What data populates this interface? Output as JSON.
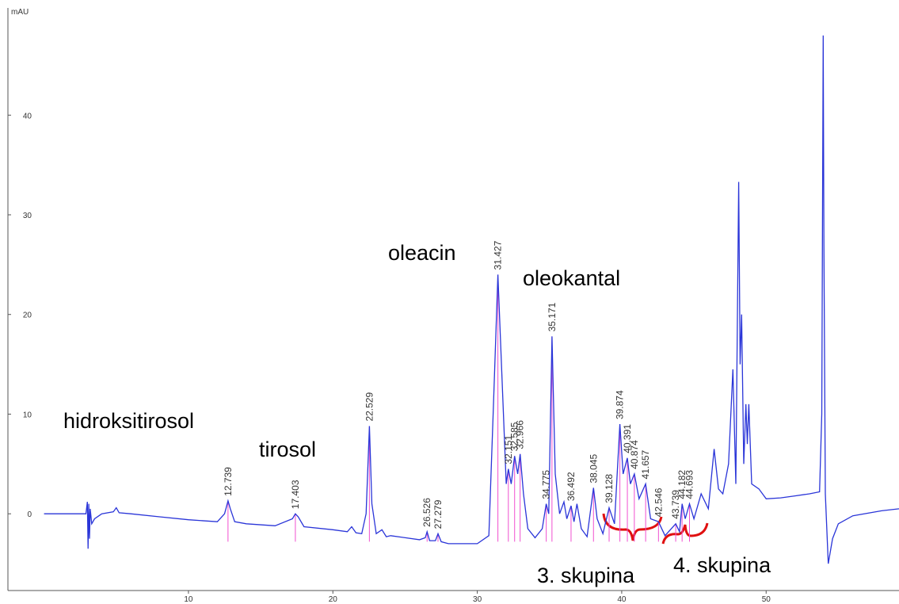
{
  "chart_data": {
    "type": "line",
    "y_label": "mAU",
    "x": [
      0,
      2.9,
      3.0,
      3.05,
      3.1,
      3.15,
      3.2,
      3.3,
      3.5,
      4,
      4.8,
      5,
      5.2,
      6,
      8,
      10,
      12,
      12.5,
      12.739,
      12.9,
      13.2,
      14,
      16,
      17.2,
      17.403,
      17.6,
      18,
      20,
      21,
      21.3,
      21.6,
      22,
      22.3,
      22.529,
      22.7,
      23,
      23.4,
      23.7,
      24,
      26,
      26.4,
      26.526,
      26.7,
      27.1,
      27.279,
      27.5,
      28,
      30,
      30.8,
      31.1,
      31.427,
      31.7,
      32,
      32.151,
      32.35,
      32.585,
      32.8,
      32.966,
      33.2,
      33.5,
      34,
      34.5,
      34.775,
      34.95,
      35.171,
      35.4,
      35.7,
      36.0,
      36.2,
      36.492,
      36.7,
      36.9,
      37.2,
      37.6,
      38.045,
      38.3,
      38.7,
      39.128,
      39.5,
      39.874,
      40.1,
      40.391,
      40.6,
      40.874,
      41.2,
      41.657,
      42,
      42.546,
      43,
      43.739,
      44,
      44.182,
      44.4,
      44.693,
      45,
      45.5,
      46,
      46.4,
      46.7,
      47,
      47.4,
      47.7,
      47.9,
      48.1,
      48.2,
      48.3,
      48.45,
      48.6,
      48.7,
      48.8,
      49,
      49.5,
      50,
      51,
      52,
      53,
      53.7,
      53.85,
      53.95,
      54.0,
      54.1,
      54.3,
      54.6,
      55,
      56,
      58,
      59.2
    ],
    "series": [
      {
        "color": "#2a35d8",
        "values": [
          0,
          0,
          1.2,
          -3.5,
          1,
          -2.5,
          0.5,
          -1,
          -0.5,
          0,
          0.2,
          0.6,
          0.1,
          0,
          -0.3,
          -0.6,
          -0.8,
          0,
          1.3,
          0.5,
          -0.8,
          -1,
          -1.2,
          -0.5,
          0,
          -0.3,
          -1.3,
          -1.6,
          -1.8,
          -1.3,
          -1.9,
          -2,
          0,
          8.8,
          1,
          -2,
          -1.6,
          -2.3,
          -2.2,
          -2.6,
          -2.4,
          -1.8,
          -2.7,
          -2.7,
          -2.0,
          -2.8,
          -3,
          -3,
          -2.2,
          10,
          24,
          14,
          3,
          4.5,
          3,
          5.8,
          4,
          6,
          2,
          -1.5,
          -2.4,
          -1.5,
          1,
          0,
          17.8,
          4,
          0,
          1.2,
          -0.5,
          0.8,
          -0.8,
          1,
          -1.5,
          -2.3,
          2.6,
          -0.5,
          -2,
          0.6,
          -1,
          9,
          4,
          5.6,
          3,
          4,
          1.5,
          3,
          -0.5,
          -0.8,
          -2.2,
          -1,
          -1.8,
          1,
          -0.5,
          1,
          -0.5,
          2,
          0.5,
          6.5,
          2.5,
          2,
          5,
          14.5,
          3,
          33.3,
          15,
          20,
          5,
          11,
          7,
          11,
          3,
          2.5,
          1.5,
          1.6,
          1.8,
          2,
          2.2,
          10,
          48,
          27,
          2,
          -5,
          -2.5,
          -1,
          -0.2,
          0.3,
          0.5
        ]
      }
    ],
    "peak_labels": [
      12.739,
      17.403,
      22.529,
      26.526,
      27.279,
      31.427,
      32.151,
      32.585,
      32.966,
      34.775,
      35.171,
      36.492,
      38.045,
      39.128,
      39.874,
      40.391,
      40.874,
      41.657,
      42.546,
      43.739,
      44.182,
      44.693
    ],
    "annotations": [
      "hidroksitirosol",
      "tirosol",
      "oleacin",
      "oleokantal",
      "3. skupina",
      "4. skupina"
    ],
    "xlim": [
      -2.5,
      59.2
    ],
    "xticks": [
      10,
      20,
      30,
      40,
      50
    ],
    "ylim": [
      -7.7,
      50.6
    ],
    "yticks": [
      0,
      10,
      20,
      30,
      40
    ]
  }
}
